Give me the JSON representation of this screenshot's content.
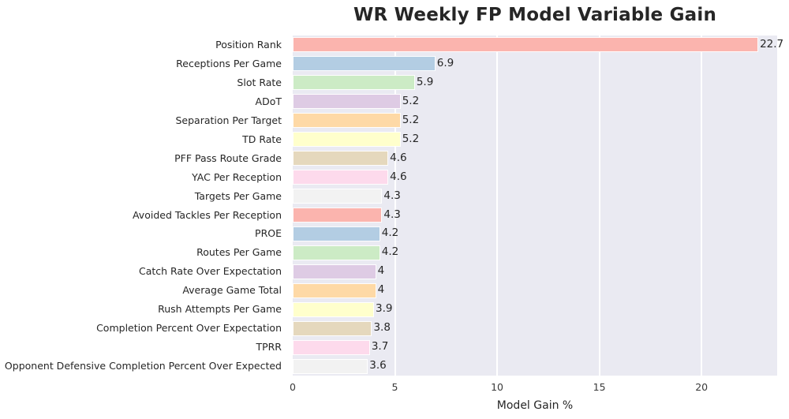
{
  "chart_data": {
    "type": "bar",
    "orientation": "horizontal",
    "title": "WR Weekly FP Model Variable Gain",
    "xlabel": "Model Gain %",
    "categories": [
      "Position Rank",
      "Receptions Per Game",
      "Slot Rate",
      "ADoT",
      "Separation Per Target",
      "TD Rate",
      "PFF Pass Route Grade",
      "YAC Per Reception",
      "Targets Per Game",
      "Avoided Tackles Per Reception",
      "PROE",
      "Routes Per Game",
      "Catch Rate Over Expectation",
      "Average Game Total",
      "Rush Attempts Per Game",
      "Completion Percent Over Expectation",
      "TPRR",
      "Opponent Defensive Completion Percent Over Expected"
    ],
    "values": [
      22.7,
      6.9,
      5.9,
      5.2,
      5.2,
      5.2,
      4.6,
      4.6,
      4.3,
      4.3,
      4.2,
      4.2,
      4,
      4,
      3.9,
      3.8,
      3.7,
      3.6
    ],
    "value_labels": [
      "22.7",
      "6.9",
      "5.9",
      "5.2",
      "5.2",
      "5.2",
      "4.6",
      "4.6",
      "4.3",
      "4.3",
      "4.2",
      "4.2",
      "4",
      "4",
      "3.9",
      "3.8",
      "3.7",
      "3.6"
    ],
    "xlim": [
      0,
      23.7
    ],
    "xticks": [
      0,
      5,
      10,
      15,
      20
    ],
    "grid_on": true,
    "legend": "none",
    "palette": [
      "#fbb4ae",
      "#b3cde3",
      "#ccebc5",
      "#decbe4",
      "#fed9a6",
      "#ffffcc",
      "#e5d8bd",
      "#fddaec",
      "#f2f2f2"
    ],
    "plot_background": "#eaeaf2",
    "grid_color": "#ffffff",
    "text_color": "#262626"
  }
}
